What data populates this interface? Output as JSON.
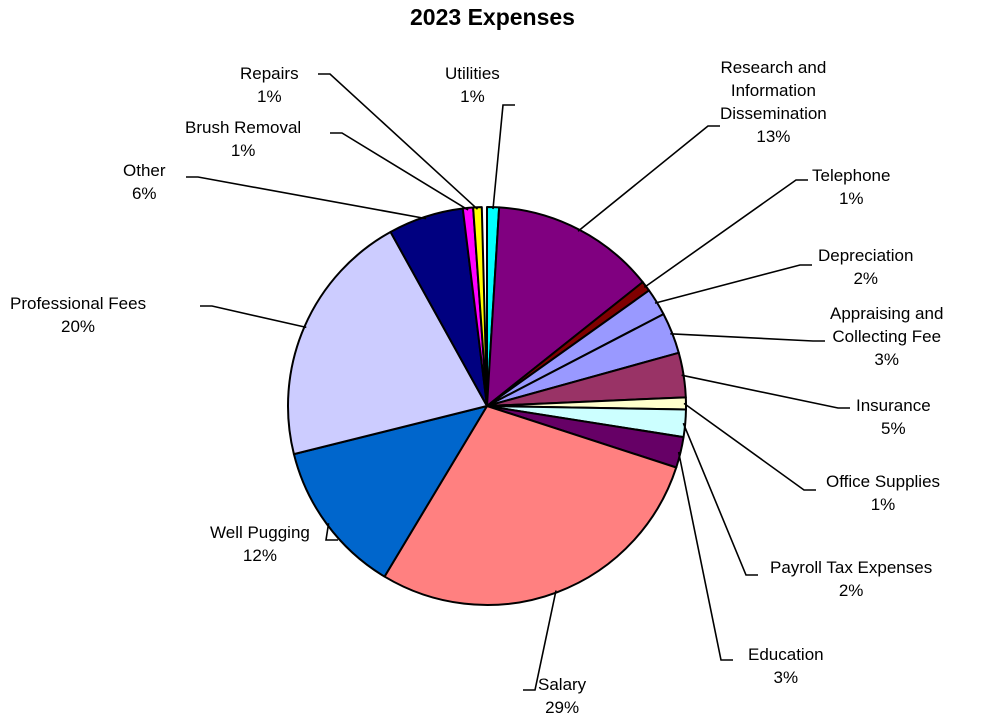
{
  "chart_data": {
    "type": "pie",
    "title": "2023 Expenses",
    "slices": [
      {
        "label": "Utilities",
        "pct_label": "1%",
        "value": 1,
        "color": "#00FFFF"
      },
      {
        "label": "Research and Information Dissemination",
        "label_lines": [
          "Research and",
          "Information",
          "Dissemination"
        ],
        "pct_label": "13%",
        "value": 13,
        "color": "#800080"
      },
      {
        "label": "Telephone",
        "pct_label": "1%",
        "value": 1,
        "color": "#800000"
      },
      {
        "label": "Depreciation",
        "pct_label": "2%",
        "value": 2,
        "color": "#9999FF"
      },
      {
        "label": "Appraising and Collecting Fee",
        "label_lines": [
          "Appraising and",
          "Collecting Fee"
        ],
        "pct_label": "3%",
        "value": 3,
        "color": "#9999FF"
      },
      {
        "label": "Insurance",
        "pct_label": "5%",
        "value": 5,
        "color": "#993366"
      },
      {
        "label": "Office Supplies",
        "pct_label": "1%",
        "value": 1,
        "color": "#FFFFCC"
      },
      {
        "label": "Payroll Tax Expenses",
        "pct_label": "2%",
        "value": 2,
        "color": "#CCFFFF"
      },
      {
        "label": "Education",
        "pct_label": "3%",
        "value": 3,
        "color": "#660066"
      },
      {
        "label": "Salary",
        "pct_label": "29%",
        "value": 29,
        "color": "#FF8080"
      },
      {
        "label": "Well Pugging",
        "pct_label": "12%",
        "value": 12,
        "color": "#0066CC"
      },
      {
        "label": "Professional Fees",
        "pct_label": "20%",
        "value": 20,
        "color": "#CCCCFF"
      },
      {
        "label": "Other",
        "pct_label": "6%",
        "value": 6,
        "color": "#000080"
      },
      {
        "label": "Brush Removal",
        "pct_label": "1%",
        "value": 1,
        "color": "#FF00FF"
      },
      {
        "label": "Repairs",
        "pct_label": "1%",
        "value": 1,
        "color": "#FFFF00"
      }
    ]
  }
}
